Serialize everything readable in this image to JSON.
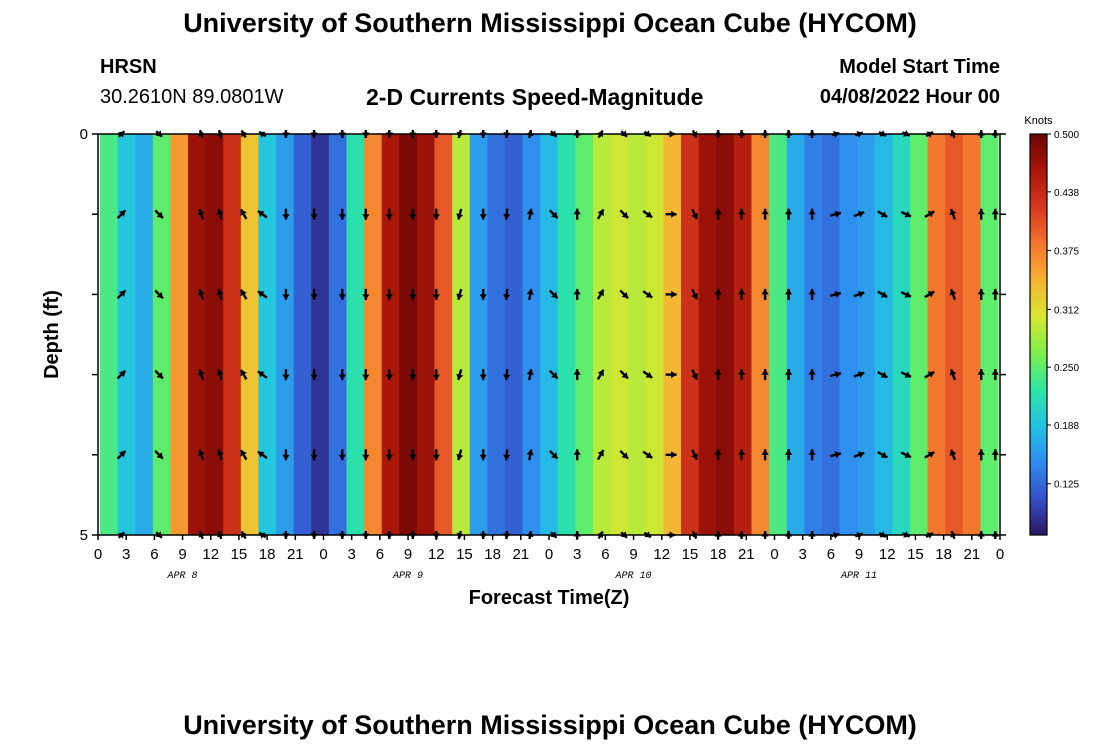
{
  "header": {
    "title": "University of Southern Mississippi Ocean Cube (HYCOM)",
    "station": "HRSN",
    "location": "30.2610N  89.0801W",
    "subtitle": "2-D Currents Speed-Magnitude",
    "model_start_label": "Model Start Time",
    "model_start_value": "04/08/2022 Hour 00"
  },
  "footer": {
    "title": "University of Southern Mississippi Ocean Cube (HYCOM)"
  },
  "colors": {
    "ramp": [
      "#2a1760",
      "#3550c8",
      "#2f8cf0",
      "#22c4e0",
      "#2ee6a2",
      "#7ef04a",
      "#d8e632",
      "#f7b233",
      "#f2742e",
      "#d6381e",
      "#a81609",
      "#6b0505"
    ]
  },
  "chart_data": {
    "type": "heatmap",
    "title": "2-D Currents Speed-Magnitude",
    "xlabel": "Forecast Time(Z)",
    "ylabel": "Depth (ft)",
    "ylim": [
      0,
      5
    ],
    "y_tick_labels": [
      "0",
      "5"
    ],
    "x_tick_labels": [
      "0",
      "3",
      "6",
      "9",
      "12",
      "15",
      "18",
      "21",
      "0",
      "3",
      "6",
      "9",
      "12",
      "15",
      "18",
      "21",
      "0",
      "3",
      "6",
      "9",
      "12",
      "15",
      "18",
      "21",
      "0",
      "3",
      "6",
      "9",
      "12",
      "15",
      "18",
      "21",
      "0"
    ],
    "date_labels": [
      "APR 8",
      "APR 9",
      "APR 10",
      "APR 11"
    ],
    "colorbar": {
      "unit": "Knots",
      "ticks": [
        "0.500",
        "0.438",
        "0.375",
        "0.312",
        "0.250",
        "0.188",
        "0.125"
      ],
      "range": [
        0.07,
        0.5
      ]
    },
    "depth_levels": 6,
    "speed_knots": [
      0.24,
      0.19,
      0.17,
      0.25,
      0.36,
      0.47,
      0.48,
      0.43,
      0.33,
      0.19,
      0.16,
      0.12,
      0.09,
      0.13,
      0.22,
      0.37,
      0.46,
      0.49,
      0.47,
      0.4,
      0.29,
      0.16,
      0.13,
      0.12,
      0.15,
      0.18,
      0.22,
      0.25,
      0.29,
      0.3,
      0.29,
      0.3,
      0.34,
      0.43,
      0.47,
      0.48,
      0.45,
      0.37,
      0.24,
      0.17,
      0.14,
      0.13,
      0.15,
      0.16,
      0.18,
      0.21,
      0.25,
      0.38,
      0.4,
      0.38,
      0.25
    ],
    "vectors": {
      "times_hr": [
        2.5,
        6.5,
        11,
        13,
        15.5,
        17.5,
        20,
        23,
        26,
        28.5,
        31,
        33.5,
        36,
        38.5,
        41,
        43.5,
        46,
        48.5,
        51,
        53.5,
        56,
        58.5,
        61,
        63.5,
        66,
        68.5,
        71,
        73.5,
        76,
        78.5,
        81,
        83.5,
        86,
        88.5,
        91,
        94,
        95.5
      ],
      "direction_deg": [
        45,
        315,
        110,
        105,
        120,
        145,
        270,
        270,
        270,
        270,
        270,
        270,
        270,
        255,
        270,
        265,
        80,
        315,
        90,
        60,
        315,
        325,
        0,
        295,
        90,
        90,
        90,
        90,
        90,
        15,
        20,
        330,
        335,
        30,
        110,
        90,
        90
      ]
    }
  }
}
